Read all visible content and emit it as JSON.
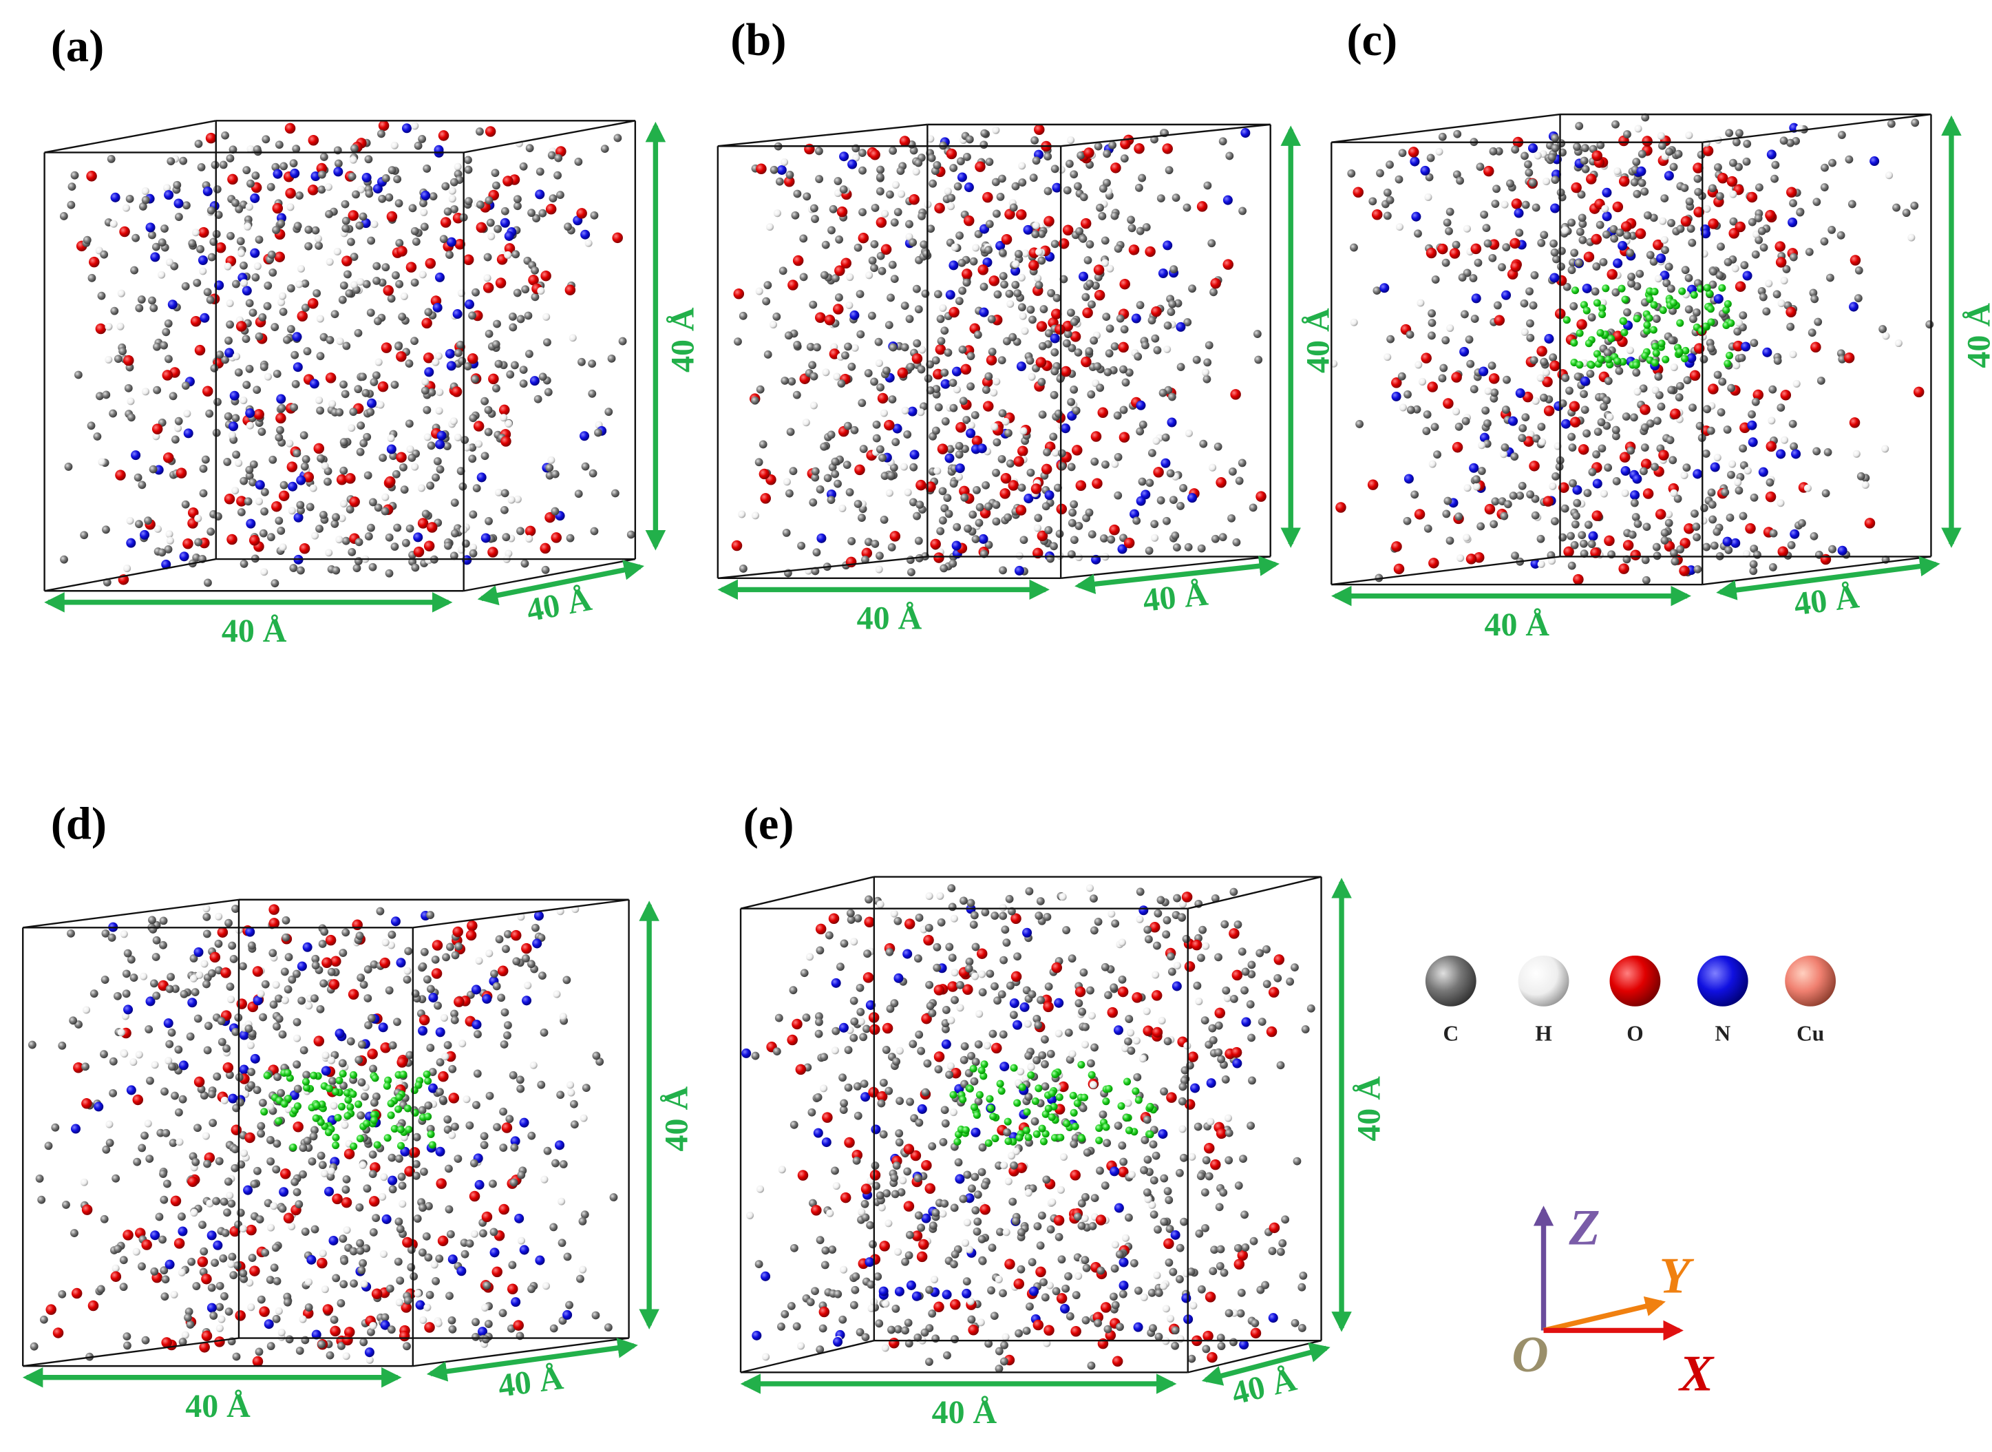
{
  "panels": [
    {
      "label": "(a)",
      "dims": [
        "40 Å",
        "40 Å",
        "40 Å"
      ]
    },
    {
      "label": "(b)",
      "dims": [
        "40 Å",
        "40 Å",
        "40 Å"
      ]
    },
    {
      "label": "(c)",
      "dims": [
        "40 Å",
        "40 Å",
        "40 Å"
      ]
    },
    {
      "label": "(d)",
      "dims": [
        "40 Å",
        "40 Å",
        "40 Å"
      ]
    },
    {
      "label": "(e)",
      "dims": [
        "40 Å",
        "40 Å",
        "40 Å"
      ]
    }
  ],
  "legend": [
    "C",
    "H",
    "O",
    "N",
    "Cu"
  ],
  "axes": {
    "z": "Z",
    "y": "Y",
    "x": "X",
    "origin": "O"
  }
}
